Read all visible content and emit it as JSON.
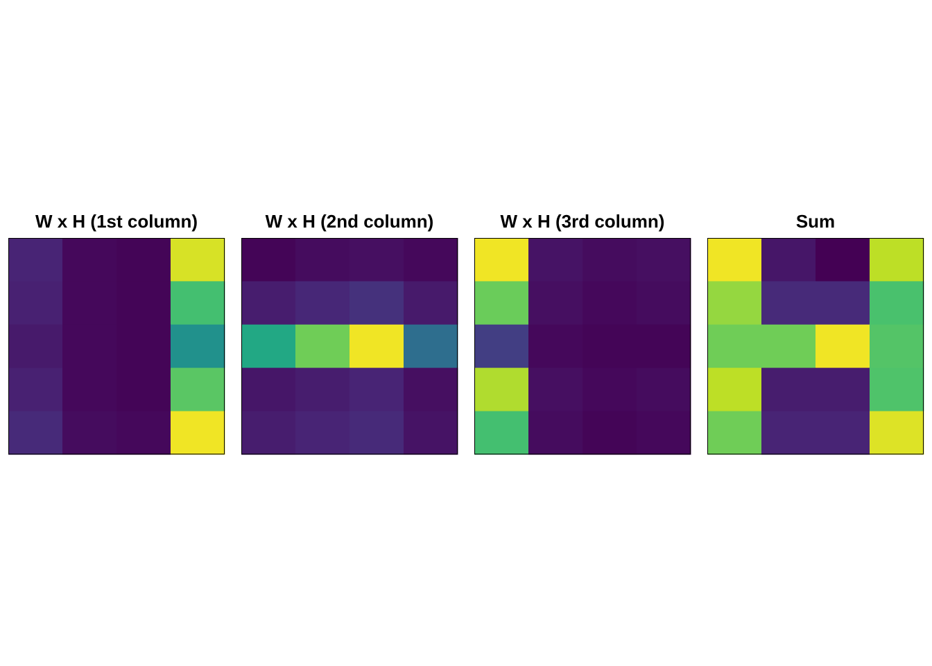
{
  "chart_data": [
    {
      "type": "heatmap",
      "title": "W x H (1st column)",
      "colorscale": "viridis",
      "rows": 5,
      "cols": 4,
      "values": [
        [
          0.1,
          0.02,
          0.01,
          0.94
        ],
        [
          0.09,
          0.02,
          0.01,
          0.7
        ],
        [
          0.07,
          0.02,
          0.01,
          0.5
        ],
        [
          0.09,
          0.02,
          0.01,
          0.74
        ],
        [
          0.12,
          0.03,
          0.02,
          0.98
        ]
      ]
    },
    {
      "type": "heatmap",
      "title": "W x H (2nd column)",
      "colorscale": "viridis",
      "rows": 5,
      "cols": 4,
      "values": [
        [
          0.01,
          0.03,
          0.04,
          0.02
        ],
        [
          0.08,
          0.11,
          0.14,
          0.07
        ],
        [
          0.6,
          0.78,
          0.98,
          0.36
        ],
        [
          0.06,
          0.08,
          0.1,
          0.04
        ],
        [
          0.08,
          0.1,
          0.12,
          0.05
        ]
      ]
    },
    {
      "type": "heatmap",
      "title": "W x H (3rd column)",
      "colorscale": "viridis",
      "rows": 5,
      "cols": 4,
      "values": [
        [
          0.98,
          0.05,
          0.03,
          0.04
        ],
        [
          0.77,
          0.04,
          0.02,
          0.03
        ],
        [
          0.18,
          0.02,
          0.01,
          0.01
        ],
        [
          0.88,
          0.04,
          0.02,
          0.03
        ],
        [
          0.7,
          0.03,
          0.01,
          0.02
        ]
      ]
    },
    {
      "type": "heatmap",
      "title": "Sum",
      "colorscale": "viridis",
      "rows": 5,
      "cols": 4,
      "values": [
        [
          0.98,
          0.06,
          0.0,
          0.9
        ],
        [
          0.84,
          0.12,
          0.12,
          0.71
        ],
        [
          0.78,
          0.78,
          0.98,
          0.73
        ],
        [
          0.9,
          0.08,
          0.08,
          0.72
        ],
        [
          0.78,
          0.1,
          0.1,
          0.95
        ]
      ]
    }
  ]
}
